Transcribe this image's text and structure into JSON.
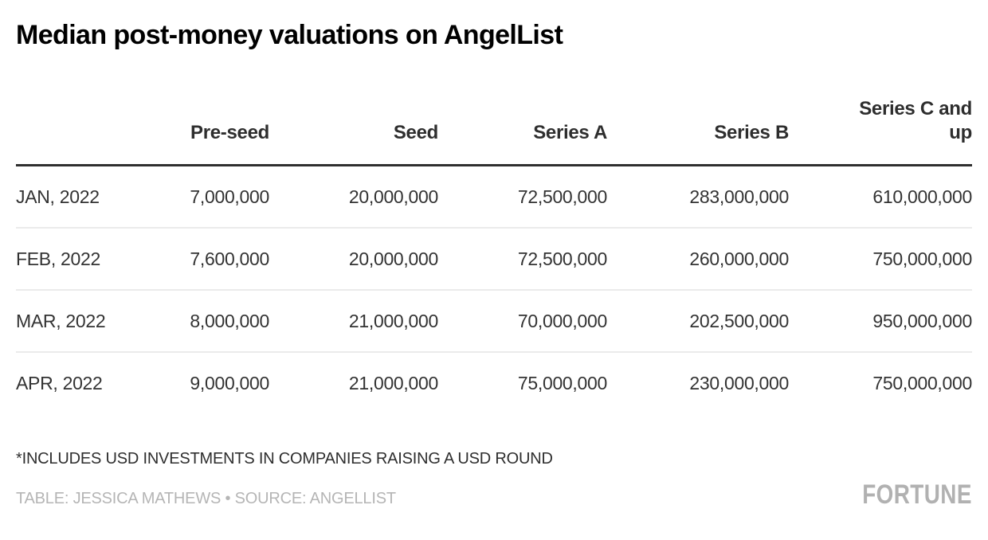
{
  "title": "Median post-money valuations on AngelList",
  "table": {
    "columns": [
      "",
      "Pre-seed",
      "Seed",
      "Series A",
      "Series B",
      "Series C and up"
    ],
    "rows": [
      {
        "label": "JAN, 2022",
        "values": [
          "7,000,000",
          "20,000,000",
          "72,500,000",
          "283,000,000",
          "610,000,000"
        ]
      },
      {
        "label": "FEB, 2022",
        "values": [
          "7,600,000",
          "20,000,000",
          "72,500,000",
          "260,000,000",
          "750,000,000"
        ]
      },
      {
        "label": "MAR, 2022",
        "values": [
          "8,000,000",
          "21,000,000",
          "70,000,000",
          "202,500,000",
          "950,000,000"
        ]
      },
      {
        "label": "APR, 2022",
        "values": [
          "9,000,000",
          "21,000,000",
          "75,000,000",
          "230,000,000",
          "750,000,000"
        ]
      }
    ]
  },
  "footnote": "*INCLUDES USD INVESTMENTS IN COMPANIES RAISING A USD ROUND",
  "credit": "TABLE: JESSICA MATHEWS • SOURCE: ANGELLIST",
  "brand": "FORTUNE",
  "colors": {
    "title": "#000000",
    "header_text": "#2e2e2e",
    "header_rule": "#2f2f2f",
    "body_text": "#333333",
    "row_divider": "#ebebeb",
    "credit_text": "#b5b5b5",
    "brand_gray": "#b1b1b1",
    "background": "#ffffff"
  },
  "chart_data": {
    "type": "table",
    "title": "Median post-money valuations on AngelList",
    "categories": [
      "JAN, 2022",
      "FEB, 2022",
      "MAR, 2022",
      "APR, 2022"
    ],
    "series": [
      {
        "name": "Pre-seed",
        "values": [
          7000000,
          7600000,
          8000000,
          9000000
        ]
      },
      {
        "name": "Seed",
        "values": [
          20000000,
          20000000,
          21000000,
          21000000
        ]
      },
      {
        "name": "Series A",
        "values": [
          72500000,
          72500000,
          70000000,
          75000000
        ]
      },
      {
        "name": "Series B",
        "values": [
          283000000,
          260000000,
          202500000,
          230000000
        ]
      },
      {
        "name": "Series C and up",
        "values": [
          610000000,
          750000000,
          950000000,
          750000000
        ]
      }
    ],
    "footnote": "*INCLUDES USD INVESTMENTS IN COMPANIES RAISING A USD ROUND",
    "source": "TABLE: JESSICA MATHEWS • SOURCE: ANGELLIST",
    "legend_position": "none",
    "grid": "horizontal-row-dividers"
  }
}
